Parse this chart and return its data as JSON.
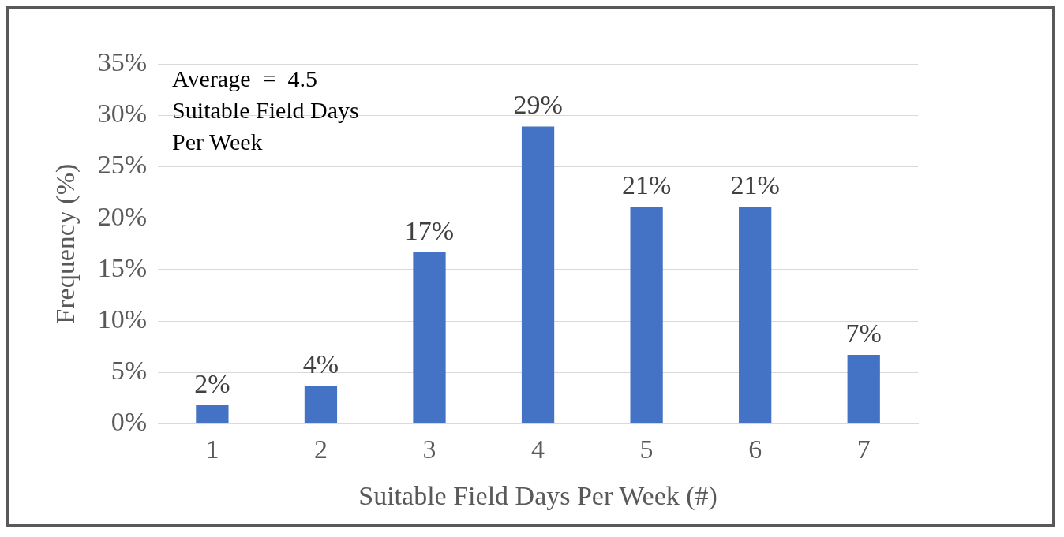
{
  "chart_data": {
    "type": "bar",
    "xlabel": "Suitable Field Days Per Week (#)",
    "ylabel": "Frequency (%)",
    "categories": [
      "1",
      "2",
      "3",
      "4",
      "5",
      "6",
      "7"
    ],
    "values": [
      1.8,
      3.7,
      16.7,
      28.9,
      21.1,
      21.1,
      6.7
    ],
    "value_labels": [
      "2%",
      "4%",
      "17%",
      "29%",
      "21%",
      "21%",
      "7%"
    ],
    "color": "#4472c4",
    "ylim": [
      0,
      35
    ],
    "yticks": [
      {
        "value": 0,
        "label": "0%"
      },
      {
        "value": 5,
        "label": "5%"
      },
      {
        "value": 10,
        "label": "10%"
      },
      {
        "value": 15,
        "label": "15%"
      },
      {
        "value": 20,
        "label": "20%"
      },
      {
        "value": 25,
        "label": "25%"
      },
      {
        "value": 30,
        "label": "30%"
      },
      {
        "value": 35,
        "label": "35%"
      }
    ],
    "grid": "y",
    "legend": false,
    "annotations": [
      "Average  =  4.5\nSuitable Field Days\nPer Week"
    ]
  }
}
